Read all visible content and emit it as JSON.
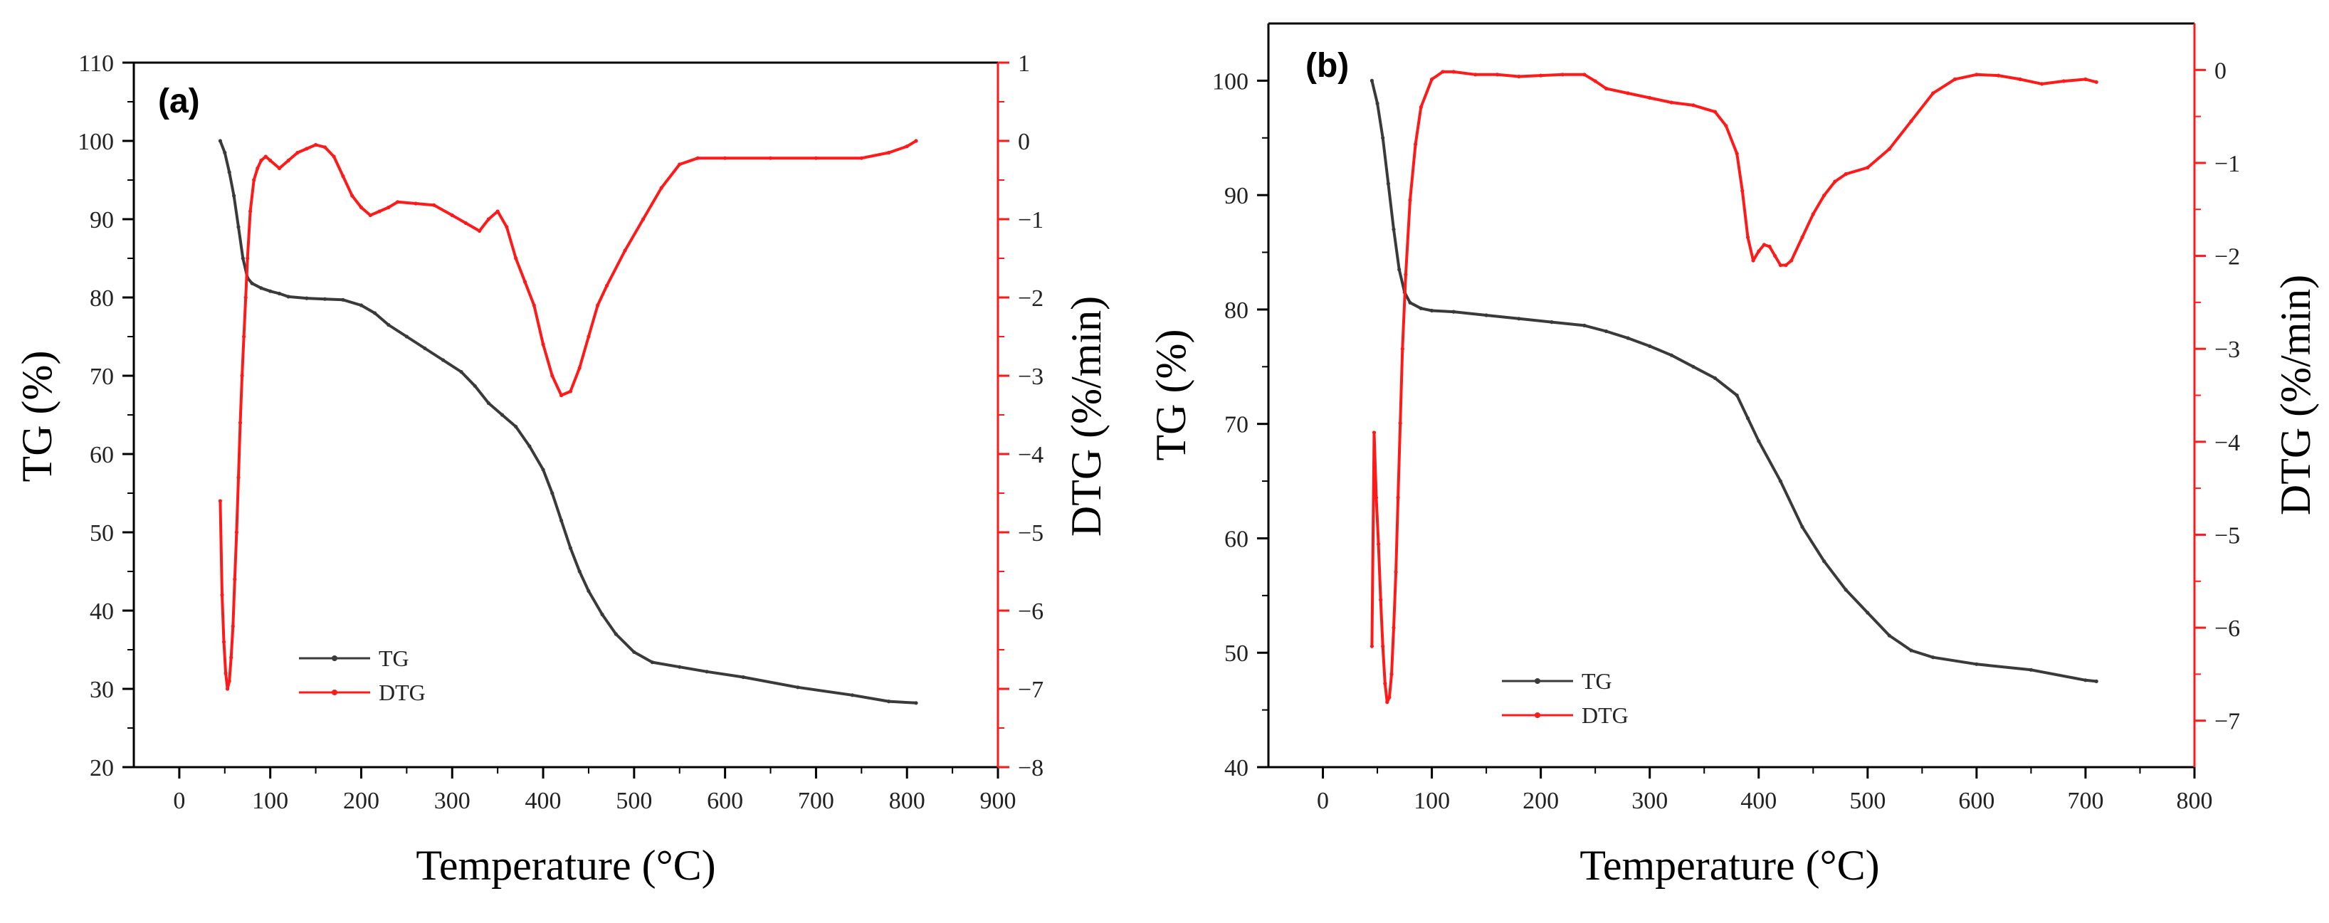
{
  "colors": {
    "tg": "#3a3a3a",
    "dtg": "#ff1a1a",
    "axis": "#000000",
    "background": "#ffffff"
  },
  "chart_data": [
    {
      "panel_label": "(a)",
      "type": "line",
      "xlabel": "Temperature (°C)",
      "ylabel_left": "TG (%)",
      "ylabel_right": "DTG (%/min)",
      "xlim": [
        -50,
        900
      ],
      "ylim_left": [
        20,
        110
      ],
      "ylim_right": [
        -8,
        1
      ],
      "xticks": [
        "0",
        "100",
        "200",
        "300",
        "400",
        "500",
        "600",
        "700",
        "800",
        "900"
      ],
      "yticks_left": [
        "20",
        "30",
        "40",
        "50",
        "60",
        "70",
        "80",
        "90",
        "100",
        "110"
      ],
      "yticks_right": [
        "-8",
        "-7",
        "-6",
        "-5",
        "-4",
        "-3",
        "-2",
        "-1",
        "0",
        "1"
      ],
      "legend": [
        "TG",
        "DTG"
      ],
      "legend_position": "lower-left",
      "series": [
        {
          "name": "TG",
          "axis": "left",
          "color": "#3a3a3a",
          "x": [
            45,
            50,
            55,
            60,
            65,
            70,
            75,
            80,
            90,
            100,
            110,
            120,
            140,
            160,
            180,
            200,
            215,
            230,
            250,
            270,
            290,
            310,
            325,
            340,
            355,
            370,
            385,
            400,
            410,
            420,
            430,
            440,
            450,
            465,
            480,
            500,
            520,
            550,
            580,
            620,
            680,
            740,
            780,
            810
          ],
          "y": [
            100,
            98.5,
            96,
            93,
            89,
            85,
            82.5,
            81.8,
            81.2,
            80.8,
            80.5,
            80.1,
            79.9,
            79.8,
            79.7,
            79,
            78,
            76.5,
            75,
            73.5,
            72,
            70.5,
            68.7,
            66.5,
            65,
            63.5,
            61,
            58,
            55,
            51.5,
            48,
            45,
            42.5,
            39.5,
            37,
            34.7,
            33.4,
            32.8,
            32.2,
            31.5,
            30.2,
            29.2,
            28.4,
            28.2
          ]
        },
        {
          "name": "DTG",
          "axis": "right",
          "color": "#ff1a1a",
          "x": [
            45,
            47,
            49,
            51,
            53,
            55,
            57,
            59,
            61,
            63,
            65,
            67,
            69,
            71,
            73,
            75,
            78,
            82,
            86,
            90,
            95,
            100,
            110,
            120,
            130,
            140,
            150,
            160,
            170,
            180,
            190,
            200,
            210,
            220,
            230,
            240,
            260,
            280,
            300,
            315,
            330,
            340,
            350,
            360,
            370,
            380,
            390,
            400,
            410,
            420,
            430,
            440,
            450,
            460,
            470,
            490,
            510,
            530,
            550,
            570,
            600,
            650,
            700,
            750,
            780,
            800,
            810
          ],
          "y": [
            -4.6,
            -5.8,
            -6.4,
            -6.8,
            -7.0,
            -6.9,
            -6.6,
            -6.2,
            -5.6,
            -5.0,
            -4.3,
            -3.6,
            -3.0,
            -2.5,
            -2.0,
            -1.5,
            -0.9,
            -0.5,
            -0.35,
            -0.25,
            -0.2,
            -0.25,
            -0.35,
            -0.25,
            -0.15,
            -0.1,
            -0.05,
            -0.08,
            -0.2,
            -0.45,
            -0.7,
            -0.85,
            -0.95,
            -0.9,
            -0.85,
            -0.78,
            -0.8,
            -0.82,
            -0.95,
            -1.05,
            -1.15,
            -1.0,
            -0.9,
            -1.1,
            -1.5,
            -1.8,
            -2.1,
            -2.6,
            -3.0,
            -3.25,
            -3.2,
            -2.9,
            -2.5,
            -2.1,
            -1.85,
            -1.4,
            -1.0,
            -0.6,
            -0.3,
            -0.22,
            -0.22,
            -0.22,
            -0.22,
            -0.22,
            -0.15,
            -0.07,
            0.0
          ]
        }
      ]
    },
    {
      "panel_label": "(b)",
      "type": "line",
      "xlabel": "Temperature (°C)",
      "ylabel_left": "TG (%)",
      "ylabel_right": "DTG (%/min)",
      "xlim": [
        -50,
        800
      ],
      "ylim_left": [
        40,
        105
      ],
      "ylim_right": [
        -7.5,
        0.5
      ],
      "xticks": [
        "0",
        "100",
        "200",
        "300",
        "400",
        "500",
        "600",
        "700",
        "800"
      ],
      "yticks_left": [
        "40",
        "50",
        "60",
        "70",
        "80",
        "90",
        "100"
      ],
      "yticks_right": [
        "-7",
        "-6",
        "-5",
        "-4",
        "-3",
        "-2",
        "-1",
        "0"
      ],
      "legend": [
        "TG",
        "DTG"
      ],
      "legend_position": "lower-left",
      "series": [
        {
          "name": "TG",
          "axis": "left",
          "color": "#3a3a3a",
          "x": [
            45,
            50,
            55,
            60,
            65,
            70,
            75,
            80,
            90,
            100,
            120,
            150,
            180,
            210,
            240,
            260,
            280,
            300,
            320,
            340,
            360,
            380,
            390,
            400,
            420,
            440,
            460,
            480,
            500,
            520,
            540,
            560,
            600,
            650,
            700,
            710
          ],
          "y": [
            100,
            98,
            95,
            91,
            87,
            83.5,
            81.5,
            80.6,
            80.1,
            79.9,
            79.8,
            79.5,
            79.2,
            78.9,
            78.6,
            78.1,
            77.5,
            76.8,
            76,
            75,
            74,
            72.5,
            70.5,
            68.5,
            65,
            61,
            58,
            55.5,
            53.5,
            51.5,
            50.2,
            49.6,
            49,
            48.5,
            47.6,
            47.5
          ]
        },
        {
          "name": "DTG",
          "axis": "right",
          "color": "#ff1a1a",
          "x": [
            45,
            47,
            49,
            51,
            53,
            55,
            57,
            59,
            61,
            63,
            65,
            67,
            69,
            71,
            73,
            76,
            80,
            85,
            90,
            100,
            110,
            120,
            140,
            160,
            180,
            200,
            220,
            240,
            250,
            260,
            280,
            300,
            320,
            340,
            360,
            370,
            380,
            385,
            390,
            395,
            400,
            405,
            410,
            415,
            420,
            425,
            430,
            440,
            450,
            460,
            470,
            480,
            500,
            520,
            540,
            560,
            580,
            600,
            620,
            640,
            660,
            680,
            700,
            710
          ],
          "y": [
            -6.2,
            -3.9,
            -4.6,
            -5.1,
            -5.7,
            -6.2,
            -6.6,
            -6.8,
            -6.75,
            -6.5,
            -6.0,
            -5.4,
            -4.6,
            -3.8,
            -3.0,
            -2.2,
            -1.4,
            -0.8,
            -0.4,
            -0.1,
            -0.02,
            -0.02,
            -0.05,
            -0.05,
            -0.07,
            -0.06,
            -0.05,
            -0.05,
            -0.12,
            -0.2,
            -0.25,
            -0.3,
            -0.35,
            -0.38,
            -0.45,
            -0.6,
            -0.9,
            -1.3,
            -1.8,
            -2.05,
            -1.95,
            -1.88,
            -1.9,
            -2.0,
            -2.1,
            -2.1,
            -2.05,
            -1.8,
            -1.55,
            -1.35,
            -1.2,
            -1.12,
            -1.05,
            -0.85,
            -0.55,
            -0.25,
            -0.1,
            -0.05,
            -0.06,
            -0.1,
            -0.15,
            -0.12,
            -0.1,
            -0.13
          ]
        }
      ]
    }
  ]
}
